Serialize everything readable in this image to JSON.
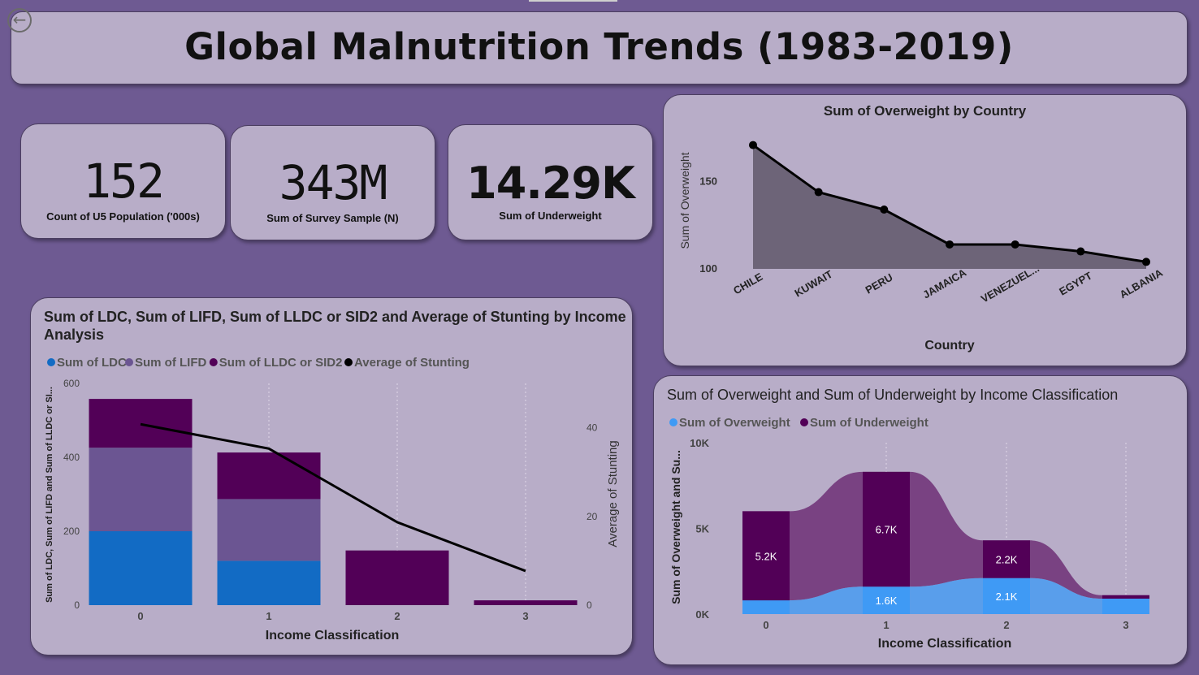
{
  "header": {
    "title": "Global Malnutrition Trends (1983-2019)"
  },
  "nav": {
    "back_icon": "←"
  },
  "kpis": [
    {
      "value": "152",
      "label": "Count of U5 Population ('000s)"
    },
    {
      "value": "343M",
      "label": "Sum of Survey Sample (N)"
    },
    {
      "value": "14.29K",
      "label": "Sum of Underweight"
    }
  ],
  "colors": {
    "ldc": "#126bc4",
    "lifd": "#6b5592",
    "lldc": "#520057",
    "stunting": "#000000",
    "overweight": "#3f9af5",
    "underweight": "#520057",
    "area_fill": "#6d6478"
  },
  "chart_data": [
    {
      "type": "area",
      "title": "Sum of Overweight by Country",
      "xlabel": "Country",
      "ylabel": "Sum of Overweight",
      "categories": [
        "CHILE",
        "KUWAIT",
        "PERU",
        "JAMAICA",
        "VENEZUEL...",
        "EGYPT",
        "ALBANIA"
      ],
      "values": [
        171,
        144,
        134,
        114,
        114,
        110,
        104
      ],
      "yticks": [
        "100",
        "150"
      ],
      "ylim": [
        100,
        175
      ]
    },
    {
      "type": "bar",
      "title": "Sum of LDC, Sum of LIFD, Sum of LLDC or SID2 and Average of Stunting by Income Analysis",
      "xlabel": "Income Classification",
      "ylabel": "Sum of LDC, Sum of LIFD and Sum of LLDC or SI...",
      "y2label": "Average of Stunting",
      "categories": [
        "0",
        "1",
        "2",
        "3"
      ],
      "series": [
        {
          "name": "Sum of LDC",
          "values": [
            200,
            120,
            0,
            0
          ]
        },
        {
          "name": "Sum of LIFD",
          "values": [
            226,
            167,
            0,
            0
          ]
        },
        {
          "name": "Sum of LLDC or SID2",
          "values": [
            132,
            126,
            148,
            13
          ]
        }
      ],
      "line": {
        "name": "Average of Stunting",
        "values": [
          40.8,
          35.3,
          18.7,
          7.7
        ]
      },
      "yticks": [
        "0",
        "200",
        "400",
        "600"
      ],
      "y2ticks": [
        "0",
        "20",
        "40"
      ],
      "ylim": [
        0,
        600
      ],
      "y2lim": [
        0,
        50
      ]
    },
    {
      "type": "area",
      "title": "Sum of Overweight and Sum of Underweight by Income Classification",
      "xlabel": "Income Classification",
      "ylabel": "Sum of Overweight and Su...",
      "categories": [
        "0",
        "1",
        "2",
        "3"
      ],
      "series": [
        {
          "name": "Sum of Overweight",
          "values": [
            0.8,
            1.6,
            2.1,
            0.9
          ],
          "labels": [
            "",
            "1.6K",
            "2.1K",
            ""
          ]
        },
        {
          "name": "Sum of Underweight",
          "values": [
            5.2,
            6.7,
            2.2,
            0.2
          ],
          "labels": [
            "5.2K",
            "6.7K",
            "2.2K",
            ""
          ]
        }
      ],
      "yticks": [
        "0K",
        "5K",
        "10K"
      ],
      "ylim": [
        0,
        10
      ]
    }
  ]
}
